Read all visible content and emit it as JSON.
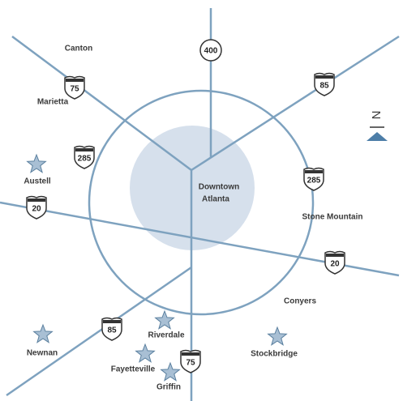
{
  "map": {
    "places": [
      {
        "label": "Canton"
      },
      {
        "label": "Marietta"
      },
      {
        "label": "Austell"
      },
      {
        "label": "Stone Mountain"
      },
      {
        "label": "Conyers"
      },
      {
        "label": "Riverdale"
      },
      {
        "label": "Newnan"
      },
      {
        "label": "Stockbridge"
      },
      {
        "label": "Fayetteville"
      },
      {
        "label": "Griffin"
      }
    ],
    "downtown": [
      "Downtown",
      "Atlanta"
    ],
    "highways": [
      {
        "label": "75"
      },
      {
        "label": "400"
      },
      {
        "label": "85"
      },
      {
        "label": "285"
      },
      {
        "label": "285"
      },
      {
        "label": "20"
      },
      {
        "label": "20"
      },
      {
        "label": "85"
      },
      {
        "label": "75"
      }
    ],
    "north": "N"
  }
}
